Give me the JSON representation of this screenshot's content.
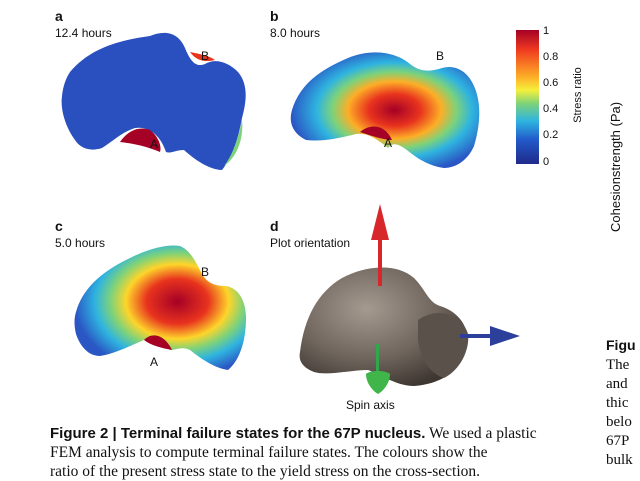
{
  "panels": {
    "a": {
      "label": "a",
      "time": "12.4 hours",
      "point_a": "A",
      "point_b": "B"
    },
    "b": {
      "label": "b",
      "time": "8.0 hours",
      "point_a": "A",
      "point_b": "B"
    },
    "c": {
      "label": "c",
      "time": "5.0 hours",
      "point_a": "A",
      "point_b": "B"
    },
    "d": {
      "label": "d",
      "title": "Plot orientation",
      "spin_axis": "Spin axis"
    }
  },
  "colorbar": {
    "title": "Stress ratio",
    "ticks": [
      "1",
      "0.8",
      "0.6",
      "0.4",
      "0.2",
      "0"
    ],
    "colors": [
      "#a50026",
      "#f03b20",
      "#fdae27",
      "#f5f03c",
      "#7dd27a",
      "#2fb4e0",
      "#2259c9",
      "#202a8a"
    ]
  },
  "right_axis_label": "Cohesionstrength (Pa)",
  "caption": {
    "heading": "Figure 2 | Terminal failure states for the 67P nucleus.",
    "line1_rest": " We used a plastic",
    "line2": "FEM analysis to compute terminal failure states. The colours show the",
    "line3": "ratio of the present stress state to the yield stress on the cross-section."
  },
  "right_column": {
    "lines": [
      "Figu",
      "The",
      "and",
      "thic",
      "belo",
      "67P",
      "bulk"
    ]
  }
}
